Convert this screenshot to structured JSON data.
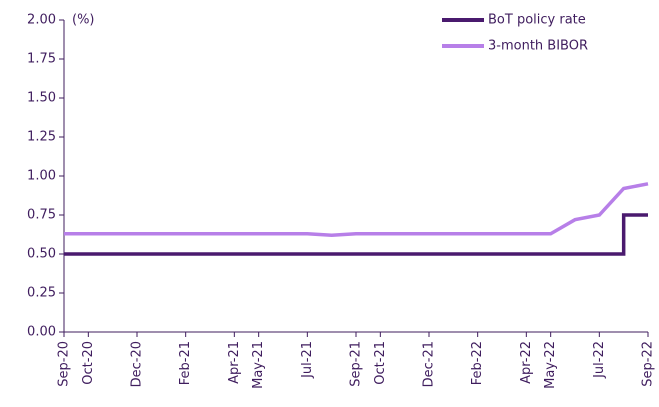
{
  "chart_data": {
    "type": "line",
    "y_unit_label": "(%)",
    "x": [
      "Sep-20",
      "Oct-20",
      "Nov-20",
      "Dec-20",
      "Jan-21",
      "Feb-21",
      "Mar-21",
      "Apr-21",
      "May-21",
      "Jun-21",
      "Jul-21",
      "Aug-21",
      "Sep-21",
      "Oct-21",
      "Nov-21",
      "Dec-21",
      "Jan-22",
      "Feb-22",
      "Mar-22",
      "Apr-22",
      "May-22",
      "Jun-22",
      "Jul-22",
      "Aug-22",
      "Sep-22"
    ],
    "series": [
      {
        "name": "BoT policy rate",
        "color": "#4a1a6e",
        "step": true,
        "values": [
          0.5,
          0.5,
          0.5,
          0.5,
          0.5,
          0.5,
          0.5,
          0.5,
          0.5,
          0.5,
          0.5,
          0.5,
          0.5,
          0.5,
          0.5,
          0.5,
          0.5,
          0.5,
          0.5,
          0.5,
          0.5,
          0.5,
          0.5,
          0.75,
          0.75
        ]
      },
      {
        "name": "3-month BIBOR",
        "color": "#b77fe8",
        "step": false,
        "values": [
          0.63,
          0.63,
          0.63,
          0.63,
          0.63,
          0.63,
          0.63,
          0.63,
          0.63,
          0.63,
          0.63,
          0.62,
          0.63,
          0.63,
          0.63,
          0.63,
          0.63,
          0.63,
          0.63,
          0.63,
          0.63,
          0.72,
          0.75,
          0.92,
          0.95
        ]
      }
    ],
    "xlim": [
      "Sep-20",
      "Sep-22"
    ],
    "xticks": [
      "Sep-20",
      "Oct-20",
      "Dec-20",
      "Feb-21",
      "Apr-21",
      "May-21",
      "Jul-21",
      "Sep-21",
      "Oct-21",
      "Dec-21",
      "Feb-22",
      "Apr-22",
      "May-22",
      "Jul-22",
      "Sep-22"
    ],
    "ylim": [
      0,
      2
    ],
    "yticks": [
      {
        "value": 0,
        "label": "0.00"
      },
      {
        "value": 0.25,
        "label": "0.25"
      },
      {
        "value": 0.5,
        "label": "0.50"
      },
      {
        "value": 0.75,
        "label": "0.75"
      },
      {
        "value": 1,
        "label": "1.00"
      },
      {
        "value": 1.25,
        "label": "1.25"
      },
      {
        "value": 1.5,
        "label": "1.50"
      },
      {
        "value": 1.75,
        "label": "1.75"
      },
      {
        "value": 2,
        "label": "2.00"
      }
    ],
    "legend": "top-right",
    "grid": false
  }
}
